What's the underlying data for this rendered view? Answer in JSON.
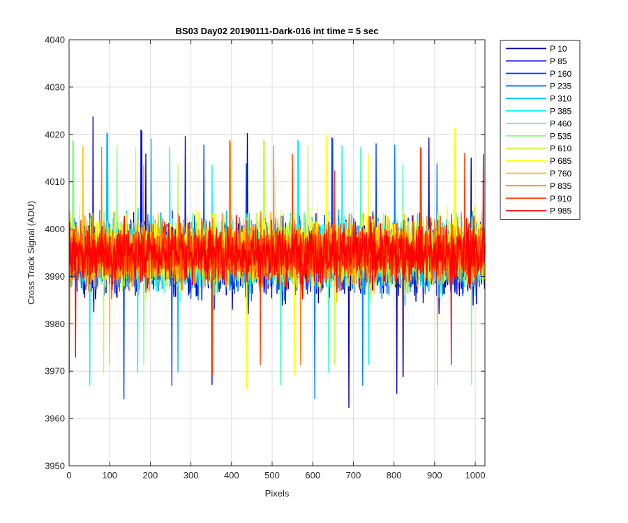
{
  "chart_data": {
    "type": "line",
    "title": "BS03 Day02 20190111-Dark-016 int time = 5 sec",
    "xlabel": "Pixels",
    "ylabel": "Cross Track Signal (ADU)",
    "xlim": [
      0,
      1024
    ],
    "ylim": [
      3950,
      4040
    ],
    "xticks": [
      0,
      100,
      200,
      300,
      400,
      500,
      600,
      700,
      800,
      900,
      1000
    ],
    "yticks": [
      3950,
      3960,
      3970,
      3980,
      3990,
      4000,
      4010,
      4020,
      4030,
      4040
    ],
    "grid": true,
    "legend_position": "outside-top-right",
    "series": [
      {
        "name": "P 10",
        "color": "#0000AF",
        "mean": 3994,
        "spread": 8.5
      },
      {
        "name": "P 85",
        "color": "#0000E6",
        "mean": 3994,
        "spread": 8.5
      },
      {
        "name": "P 160",
        "color": "#0040FF",
        "mean": 3994,
        "spread": 8.0
      },
      {
        "name": "P 235",
        "color": "#0080FF",
        "mean": 3994,
        "spread": 8.0
      },
      {
        "name": "P 310",
        "color": "#00BFFF",
        "mean": 3995,
        "spread": 8.0
      },
      {
        "name": "P 385",
        "color": "#00F5F5",
        "mean": 3995,
        "spread": 7.5
      },
      {
        "name": "P 460",
        "color": "#40FFC0",
        "mean": 3995,
        "spread": 7.5
      },
      {
        "name": "P 535",
        "color": "#80FF80",
        "mean": 3995,
        "spread": 7.5
      },
      {
        "name": "P 610",
        "color": "#C0FF40",
        "mean": 3995,
        "spread": 7.5
      },
      {
        "name": "P 685",
        "color": "#FFFF00",
        "mean": 3996,
        "spread": 8.0
      },
      {
        "name": "P 760",
        "color": "#FFC000",
        "mean": 3995,
        "spread": 7.5
      },
      {
        "name": "P 835",
        "color": "#FF8000",
        "mean": 3995,
        "spread": 7.5
      },
      {
        "name": "P 910",
        "color": "#FF4000",
        "mean": 3995,
        "spread": 7.0
      },
      {
        "name": "P 985",
        "color": "#FF0000",
        "mean": 3995,
        "spread": 7.0
      }
    ],
    "x_range": [
      1,
      1024
    ]
  }
}
